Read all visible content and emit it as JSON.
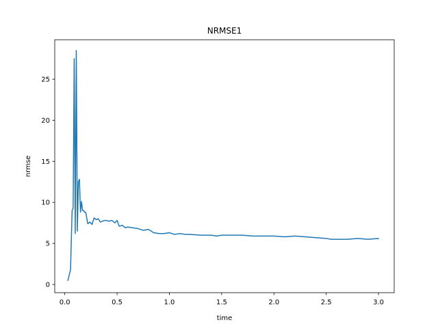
{
  "chart_data": {
    "type": "line",
    "title": "NRMSE1",
    "xlabel": "time",
    "ylabel": "nrmse",
    "xlim": [
      -0.096,
      3.15
    ],
    "ylim": [
      -1.0,
      29.8
    ],
    "xticks": [
      0.0,
      0.5,
      1.0,
      1.5,
      2.0,
      2.5,
      3.0
    ],
    "xtick_labels": [
      "0.0",
      "0.5",
      "1.0",
      "1.5",
      "2.0",
      "2.5",
      "3.0"
    ],
    "yticks": [
      0,
      5,
      10,
      15,
      20,
      25
    ],
    "ytick_labels": [
      "0",
      "5",
      "10",
      "15",
      "20",
      "25"
    ],
    "grid": false,
    "series": [
      {
        "color": "#1f77b4",
        "x": [
          0.03,
          0.055,
          0.07,
          0.08,
          0.09,
          0.1,
          0.11,
          0.12,
          0.13,
          0.14,
          0.15,
          0.16,
          0.17,
          0.18,
          0.19,
          0.2,
          0.22,
          0.24,
          0.26,
          0.28,
          0.3,
          0.32,
          0.34,
          0.36,
          0.38,
          0.4,
          0.42,
          0.45,
          0.48,
          0.5,
          0.52,
          0.55,
          0.58,
          0.6,
          0.65,
          0.7,
          0.75,
          0.8,
          0.85,
          0.9,
          0.95,
          1.0,
          1.05,
          1.1,
          1.15,
          1.2,
          1.3,
          1.4,
          1.45,
          1.5,
          1.6,
          1.7,
          1.8,
          1.9,
          2.0,
          2.1,
          2.2,
          2.3,
          2.4,
          2.5,
          2.55,
          2.6,
          2.7,
          2.8,
          2.9,
          3.0
        ],
        "y": [
          0.5,
          1.8,
          9.0,
          9.3,
          27.5,
          6.2,
          28.5,
          6.5,
          12.5,
          12.8,
          8.8,
          10.1,
          9.0,
          9.0,
          8.8,
          8.8,
          7.4,
          7.6,
          7.3,
          8.1,
          7.9,
          8.0,
          7.6,
          7.7,
          7.8,
          7.8,
          7.7,
          7.8,
          7.5,
          7.8,
          7.1,
          7.2,
          6.9,
          7.0,
          6.9,
          6.8,
          6.6,
          6.7,
          6.3,
          6.2,
          6.2,
          6.3,
          6.1,
          6.2,
          6.1,
          6.1,
          6.0,
          6.0,
          5.9,
          6.0,
          6.0,
          6.0,
          5.9,
          5.9,
          5.9,
          5.8,
          5.9,
          5.8,
          5.7,
          5.6,
          5.5,
          5.5,
          5.5,
          5.6,
          5.5,
          5.6
        ]
      }
    ]
  }
}
